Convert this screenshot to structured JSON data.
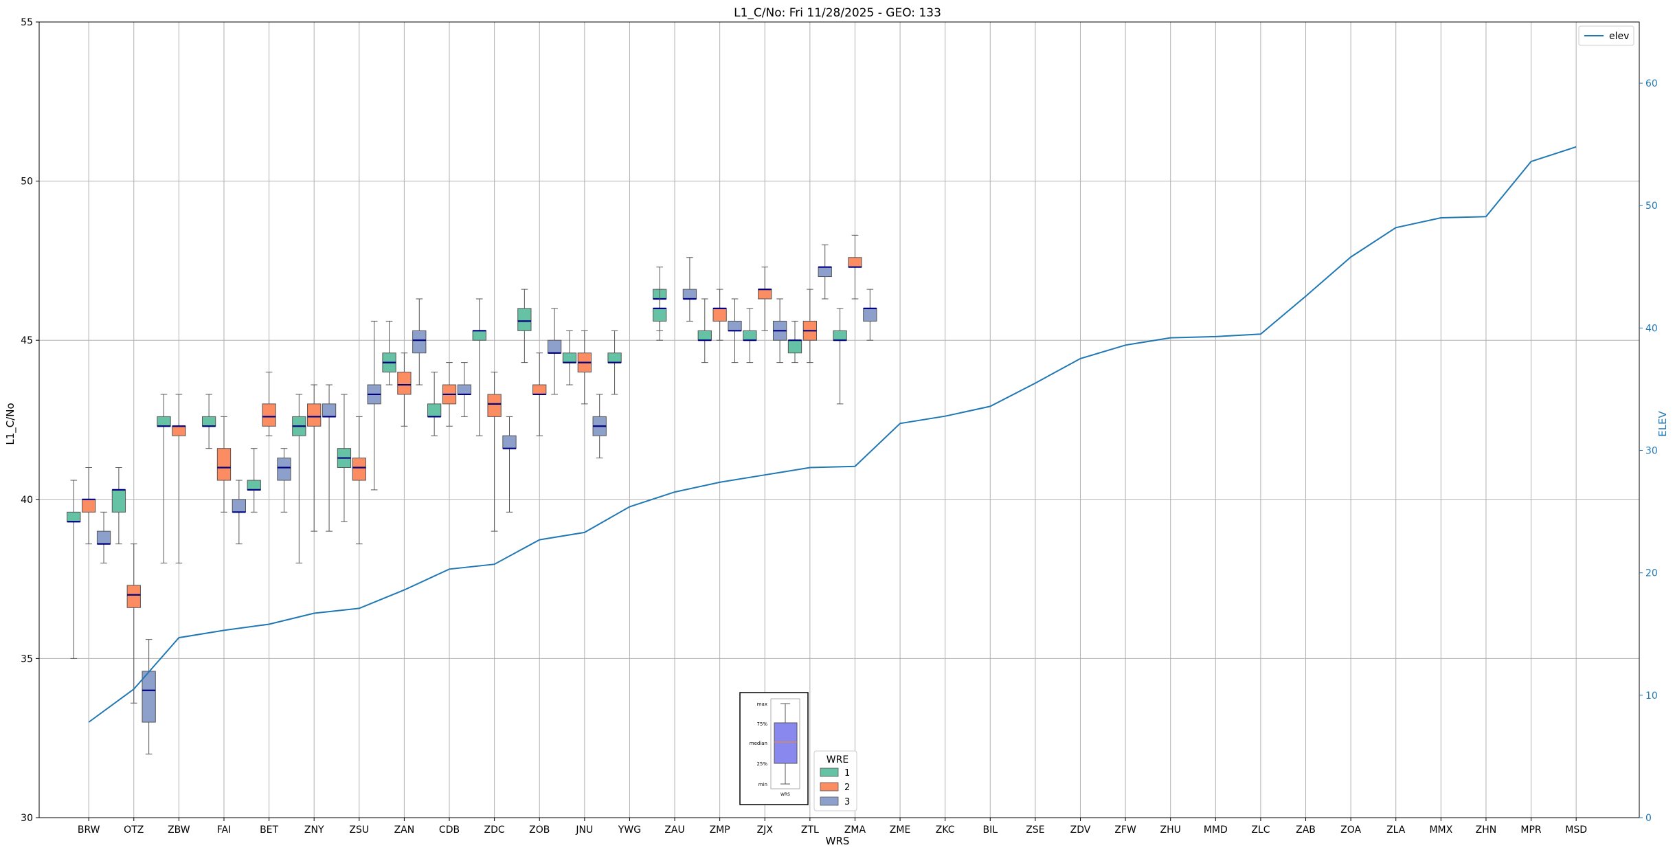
{
  "chart_data": {
    "type": "box",
    "title": "L1_C/No: Fri 11/28/2025 - GEO: 133",
    "xlabel": "WRS",
    "ylabel": "L1_C/No",
    "y2label": "ELEV",
    "ylim": [
      30,
      55
    ],
    "y2lim": [
      0,
      65
    ],
    "yticks": [
      30,
      35,
      40,
      45,
      50,
      55
    ],
    "y2ticks": [
      0,
      10,
      20,
      30,
      40,
      50,
      60
    ],
    "grid": true,
    "colors": {
      "1": "#66c2a5",
      "2": "#fc8d62",
      "3": "#8da0cb",
      "median": "#000080",
      "elev": "#1f77b4",
      "whisker": "#555555"
    },
    "legend_line": {
      "label": "elev",
      "position": "top-right"
    },
    "legend_wre": {
      "title": "WRE",
      "labels": [
        "1",
        "2",
        "3"
      ],
      "position": "bottom-center"
    },
    "key_labels": [
      "max",
      "75%",
      "median",
      "25%",
      "min",
      "WRS"
    ],
    "categories": [
      "BRW",
      "OTZ",
      "ZBW",
      "FAI",
      "BET",
      "ZNY",
      "ZSU",
      "ZAN",
      "CDB",
      "ZDC",
      "ZOB",
      "JNU",
      "YWG",
      "ZAU",
      "ZMP",
      "ZJX",
      "ZTL",
      "ZMA",
      "ZME",
      "ZKC",
      "BIL",
      "ZSE",
      "ZDV",
      "ZFW",
      "ZHU",
      "MMD",
      "ZLC",
      "ZAB",
      "ZOA",
      "ZLA",
      "MMX",
      "ZHN",
      "MPR",
      "MSD"
    ],
    "elev": [
      7.8,
      10.5,
      14.7,
      15.3,
      15.8,
      16.7,
      17.1,
      18.6,
      20.3,
      20.7,
      22.7,
      23.3,
      25.4,
      26.6,
      27.4,
      28.0,
      28.6,
      28.7,
      32.2,
      32.8,
      33.6,
      35.5,
      37.5,
      38.6,
      39.2,
      39.3,
      39.5,
      42.6,
      45.8,
      48.2,
      49.0,
      49.1,
      53.6,
      54.8
    ],
    "boxes": [
      {
        "wrs": "BRW",
        "wre": "1",
        "min": 35.0,
        "q1": 39.3,
        "med": 39.3,
        "q3": 39.6,
        "max": 40.6
      },
      {
        "wrs": "BRW",
        "wre": "2",
        "min": 38.6,
        "q1": 39.6,
        "med": 40.0,
        "q3": 40.0,
        "max": 41.0
      },
      {
        "wrs": "BRW",
        "wre": "3",
        "min": 38.0,
        "q1": 38.6,
        "med": 38.6,
        "q3": 39.0,
        "max": 39.6
      },
      {
        "wrs": "OTZ",
        "wre": "1",
        "min": 38.6,
        "q1": 39.6,
        "med": 40.3,
        "q3": 40.3,
        "max": 41.0
      },
      {
        "wrs": "OTZ",
        "wre": "2",
        "min": 33.6,
        "q1": 36.6,
        "med": 37.0,
        "q3": 37.3,
        "max": 38.6
      },
      {
        "wrs": "OTZ",
        "wre": "3",
        "min": 32.0,
        "q1": 33.0,
        "med": 34.0,
        "q3": 34.6,
        "max": 35.6
      },
      {
        "wrs": "ZBW",
        "wre": "1",
        "min": 38.0,
        "q1": 42.3,
        "med": 42.3,
        "q3": 42.6,
        "max": 43.3
      },
      {
        "wrs": "ZBW",
        "wre": "2",
        "min": 38.0,
        "q1": 42.0,
        "med": 42.3,
        "q3": 42.3,
        "max": 43.3
      },
      {
        "wrs": "FAI",
        "wre": "1",
        "min": 41.6,
        "q1": 42.3,
        "med": 42.3,
        "q3": 42.6,
        "max": 43.3
      },
      {
        "wrs": "FAI",
        "wre": "2",
        "min": 39.6,
        "q1": 40.6,
        "med": 41.0,
        "q3": 41.6,
        "max": 42.6
      },
      {
        "wrs": "FAI",
        "wre": "3",
        "min": 38.6,
        "q1": 39.6,
        "med": 39.6,
        "q3": 40.0,
        "max": 40.6
      },
      {
        "wrs": "BET",
        "wre": "1",
        "min": 39.6,
        "q1": 40.3,
        "med": 40.3,
        "q3": 40.6,
        "max": 41.6
      },
      {
        "wrs": "BET",
        "wre": "2",
        "min": 42.0,
        "q1": 42.3,
        "med": 42.6,
        "q3": 43.0,
        "max": 44.0
      },
      {
        "wrs": "BET",
        "wre": "3",
        "min": 39.6,
        "q1": 40.6,
        "med": 41.0,
        "q3": 41.3,
        "max": 41.6
      },
      {
        "wrs": "ZNY",
        "wre": "1",
        "min": 38.0,
        "q1": 42.0,
        "med": 42.3,
        "q3": 42.6,
        "max": 43.3
      },
      {
        "wrs": "ZNY",
        "wre": "2",
        "min": 39.0,
        "q1": 42.3,
        "med": 42.6,
        "q3": 43.0,
        "max": 43.6
      },
      {
        "wrs": "ZNY",
        "wre": "3",
        "min": 39.0,
        "q1": 42.6,
        "med": 42.6,
        "q3": 43.0,
        "max": 43.6
      },
      {
        "wrs": "ZSU",
        "wre": "1",
        "min": 39.3,
        "q1": 41.0,
        "med": 41.3,
        "q3": 41.6,
        "max": 43.3
      },
      {
        "wrs": "ZSU",
        "wre": "2",
        "min": 38.6,
        "q1": 40.6,
        "med": 41.0,
        "q3": 41.3,
        "max": 42.6
      },
      {
        "wrs": "ZSU",
        "wre": "3",
        "min": 40.3,
        "q1": 43.0,
        "med": 43.3,
        "q3": 43.6,
        "max": 45.6
      },
      {
        "wrs": "ZAN",
        "wre": "1",
        "min": 43.6,
        "q1": 44.0,
        "med": 44.3,
        "q3": 44.6,
        "max": 45.6
      },
      {
        "wrs": "ZAN",
        "wre": "2",
        "min": 42.3,
        "q1": 43.3,
        "med": 43.6,
        "q3": 44.0,
        "max": 44.6
      },
      {
        "wrs": "ZAN",
        "wre": "3",
        "min": 43.6,
        "q1": 44.6,
        "med": 45.0,
        "q3": 45.3,
        "max": 46.3
      },
      {
        "wrs": "CDB",
        "wre": "1",
        "min": 42.0,
        "q1": 42.6,
        "med": 42.6,
        "q3": 43.0,
        "max": 44.0
      },
      {
        "wrs": "CDB",
        "wre": "2",
        "min": 42.3,
        "q1": 43.0,
        "med": 43.3,
        "q3": 43.6,
        "max": 44.3
      },
      {
        "wrs": "CDB",
        "wre": "3",
        "min": 42.6,
        "q1": 43.3,
        "med": 43.3,
        "q3": 43.6,
        "max": 44.3
      },
      {
        "wrs": "ZDC",
        "wre": "1",
        "min": 42.0,
        "q1": 45.0,
        "med": 45.3,
        "q3": 45.3,
        "max": 46.3
      },
      {
        "wrs": "ZDC",
        "wre": "2",
        "min": 39.0,
        "q1": 42.6,
        "med": 43.0,
        "q3": 43.3,
        "max": 44.0
      },
      {
        "wrs": "ZDC",
        "wre": "3",
        "min": 39.6,
        "q1": 41.6,
        "med": 41.6,
        "q3": 42.0,
        "max": 42.6
      },
      {
        "wrs": "ZOB",
        "wre": "1",
        "min": 44.3,
        "q1": 45.3,
        "med": 45.6,
        "q3": 46.0,
        "max": 46.6
      },
      {
        "wrs": "ZOB",
        "wre": "2",
        "min": 42.0,
        "q1": 43.3,
        "med": 43.3,
        "q3": 43.6,
        "max": 44.6
      },
      {
        "wrs": "ZOB",
        "wre": "3",
        "min": 43.3,
        "q1": 44.6,
        "med": 44.6,
        "q3": 45.0,
        "max": 46.0
      },
      {
        "wrs": "JNU",
        "wre": "1",
        "min": 43.6,
        "q1": 44.3,
        "med": 44.3,
        "q3": 44.6,
        "max": 45.3
      },
      {
        "wrs": "JNU",
        "wre": "2",
        "min": 43.0,
        "q1": 44.0,
        "med": 44.3,
        "q3": 44.6,
        "max": 45.3
      },
      {
        "wrs": "JNU",
        "wre": "3",
        "min": 41.3,
        "q1": 42.0,
        "med": 42.3,
        "q3": 42.6,
        "max": 43.3
      },
      {
        "wrs": "YWG",
        "wre": "1",
        "min": 43.3,
        "q1": 44.3,
        "med": 44.3,
        "q3": 44.6,
        "max": 45.3
      },
      {
        "wrs": "ZAU",
        "wre": "1",
        "min": 45.3,
        "q1": 46.3,
        "med": 46.3,
        "q3": 46.6,
        "max": 47.3
      },
      {
        "wrs": "ZAU",
        "wre": "3",
        "min": 45.6,
        "q1": 46.3,
        "med": 46.3,
        "q3": 46.6,
        "max": 47.6
      },
      {
        "wrs": "ZAU",
        "wre": "1",
        "min": 45.0,
        "q1": 45.6,
        "med": 46.0,
        "q3": 46.0,
        "max": 46.6
      },
      {
        "wrs": "ZMP",
        "wre": "2",
        "min": 45.0,
        "q1": 45.6,
        "med": 46.0,
        "q3": 46.0,
        "max": 46.6
      },
      {
        "wrs": "ZMP",
        "wre": "3",
        "min": 44.3,
        "q1": 45.3,
        "med": 45.3,
        "q3": 45.6,
        "max": 46.3
      },
      {
        "wrs": "ZMP",
        "wre": "1",
        "min": 44.3,
        "q1": 45.0,
        "med": 45.0,
        "q3": 45.3,
        "max": 46.3
      },
      {
        "wrs": "ZJX",
        "wre": "2",
        "min": 45.3,
        "q1": 46.3,
        "med": 46.6,
        "q3": 46.6,
        "max": 47.3
      },
      {
        "wrs": "ZJX",
        "wre": "3",
        "min": 44.3,
        "q1": 45.0,
        "med": 45.3,
        "q3": 45.6,
        "max": 46.3
      },
      {
        "wrs": "ZJX",
        "wre": "1",
        "min": 44.3,
        "q1": 45.0,
        "med": 45.0,
        "q3": 45.3,
        "max": 46.0
      },
      {
        "wrs": "ZTL",
        "wre": "2",
        "min": 44.3,
        "q1": 45.0,
        "med": 45.3,
        "q3": 45.6,
        "max": 46.6
      },
      {
        "wrs": "ZTL",
        "wre": "3",
        "min": 46.3,
        "q1": 47.0,
        "med": 47.3,
        "q3": 47.3,
        "max": 48.0
      },
      {
        "wrs": "ZTL",
        "wre": "1",
        "min": 44.3,
        "q1": 44.6,
        "med": 45.0,
        "q3": 45.0,
        "max": 45.6
      },
      {
        "wrs": "ZMA",
        "wre": "2",
        "min": 46.3,
        "q1": 47.3,
        "med": 47.3,
        "q3": 47.6,
        "max": 48.3
      },
      {
        "wrs": "ZMA",
        "wre": "3",
        "min": 45.0,
        "q1": 45.6,
        "med": 46.0,
        "q3": 46.0,
        "max": 46.6
      },
      {
        "wrs": "ZMA",
        "wre": "1",
        "min": 43.0,
        "q1": 45.0,
        "med": 45.0,
        "q3": 45.3,
        "max": 46.0
      }
    ]
  }
}
